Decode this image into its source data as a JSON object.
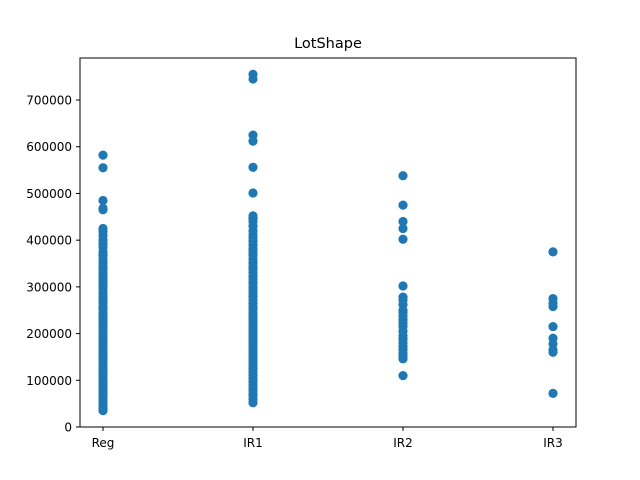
{
  "chart_data": {
    "type": "scatter",
    "title": "LotShape",
    "xlabel": "",
    "ylabel": "",
    "categories": [
      "Reg",
      "IR1",
      "IR2",
      "IR3"
    ],
    "ylim": [
      0,
      790000
    ],
    "yticks": [
      0,
      100000,
      200000,
      300000,
      400000,
      500000,
      600000,
      700000
    ],
    "ytick_labels": [
      "0",
      "100000",
      "200000",
      "300000",
      "400000",
      "500000",
      "600000",
      "700000"
    ],
    "grid": false,
    "marker_color": "#1f77b4",
    "series": [
      {
        "category": "Reg",
        "values": [
          582000,
          555000,
          485000,
          468000,
          465000,
          425000,
          418000,
          410000,
          400000,
          392000,
          385000,
          375000,
          368000,
          360000,
          352000,
          345000,
          338000,
          330000,
          325000,
          318000,
          312000,
          305000,
          298000,
          290000,
          285000,
          278000,
          272000,
          265000,
          258000,
          252000,
          245000,
          238000,
          232000,
          225000,
          218000,
          212000,
          205000,
          198000,
          192000,
          185000,
          178000,
          172000,
          165000,
          158000,
          152000,
          145000,
          138000,
          132000,
          125000,
          118000,
          112000,
          105000,
          98000,
          92000,
          85000,
          78000,
          72000,
          66000,
          58000,
          52000,
          45000,
          40000,
          35000
        ]
      },
      {
        "category": "IR1",
        "values": [
          755000,
          745000,
          625000,
          612000,
          556000,
          501000,
          452000,
          446000,
          440000,
          430000,
          420000,
          412000,
          405000,
          398000,
          390000,
          382000,
          375000,
          368000,
          360000,
          352000,
          345000,
          338000,
          330000,
          322000,
          315000,
          308000,
          300000,
          293000,
          286000,
          279000,
          272000,
          265000,
          258000,
          251000,
          244000,
          237000,
          230000,
          223000,
          216000,
          209000,
          202000,
          195000,
          188000,
          181000,
          174000,
          167000,
          160000,
          153000,
          146000,
          139000,
          132000,
          125000,
          118000,
          111000,
          104000,
          97000,
          90000,
          82000,
          75000,
          68000,
          60000,
          52000
        ]
      },
      {
        "category": "IR2",
        "values": [
          538000,
          475000,
          440000,
          425000,
          402000,
          302000,
          278000,
          272000,
          262000,
          250000,
          245000,
          238000,
          230000,
          222000,
          215000,
          205000,
          196000,
          188000,
          180000,
          172000,
          165000,
          158000,
          152000,
          146000,
          110000
        ]
      },
      {
        "category": "IR3",
        "values": [
          375000,
          275000,
          265000,
          258000,
          215000,
          190000,
          178000,
          165000,
          160000,
          72000
        ]
      }
    ]
  }
}
